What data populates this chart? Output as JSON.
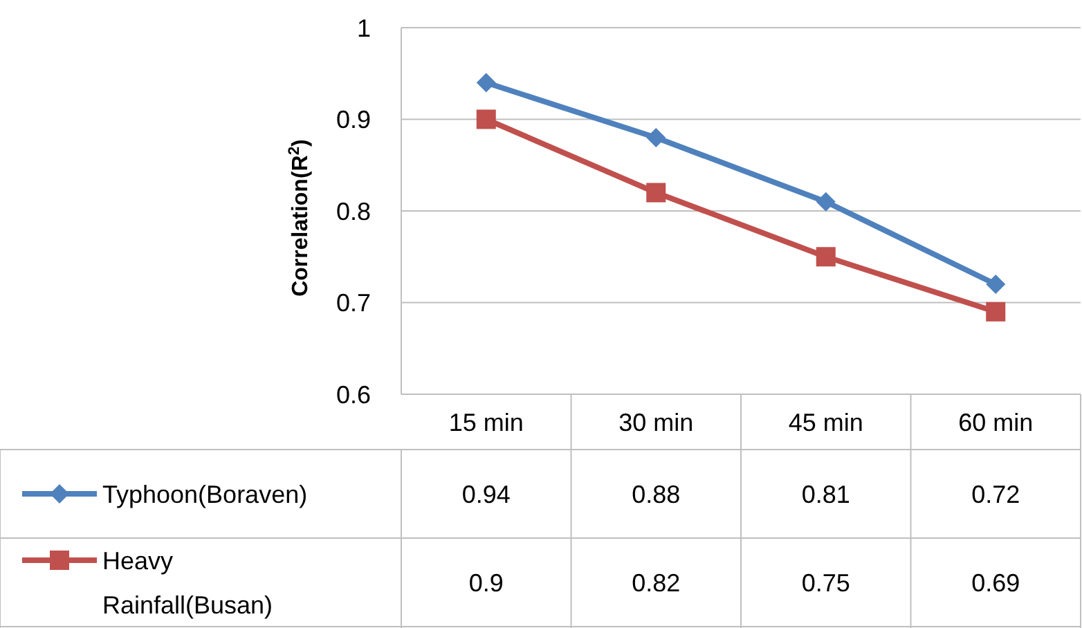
{
  "chart_data": {
    "type": "line",
    "ylabel": "Correlation(R$^{2}$)",
    "categories": [
      "15 min",
      "30 min",
      "45 min",
      "60 min"
    ],
    "series": [
      {
        "name": "Typhoon(Boraven)",
        "color": "#4f81bd",
        "marker": "diamond",
        "values": [
          0.94,
          0.88,
          0.81,
          0.72
        ]
      },
      {
        "name": "Heavy Rainfall(Busan)",
        "color": "#c0504d",
        "marker": "square",
        "values": [
          0.9,
          0.82,
          0.75,
          0.69
        ]
      }
    ],
    "ylim": [
      0.6,
      1
    ],
    "yticks": [
      0.6,
      0.7,
      0.8,
      0.9,
      1
    ],
    "grid": "y",
    "legend": "bottom",
    "data_labels": true
  }
}
